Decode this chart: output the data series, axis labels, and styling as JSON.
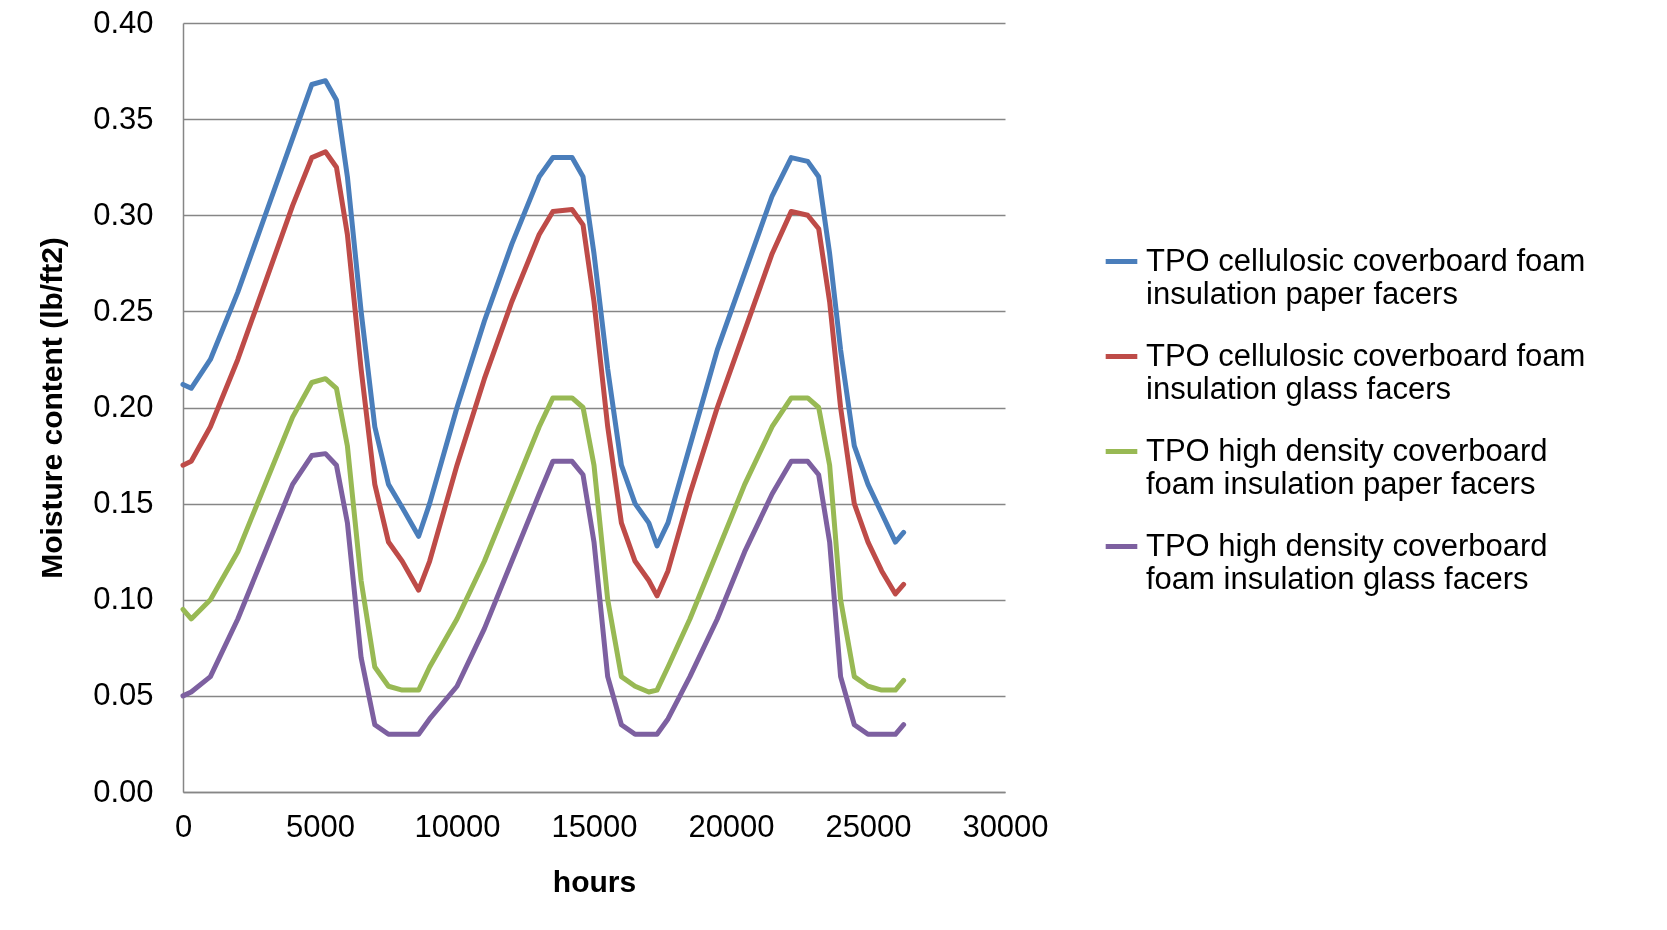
{
  "chart_data": {
    "type": "line",
    "xlabel": "hours",
    "ylabel": "Moisture content (lb/ft2)",
    "x": [
      0,
      300,
      1000,
      2000,
      3000,
      4000,
      4700,
      5200,
      5600,
      6000,
      6500,
      7000,
      7500,
      8000,
      8600,
      9000,
      10000,
      11000,
      12000,
      13000,
      13500,
      14200,
      14600,
      15000,
      15500,
      16000,
      16500,
      17000,
      17300,
      17700,
      18500,
      19500,
      20500,
      21500,
      22200,
      22800,
      23200,
      23600,
      24000,
      24500,
      25000,
      25500,
      26000,
      26300
    ],
    "series": [
      {
        "name": "TPO cellulosic coverboard foam insulation paper facers",
        "color": "#4a7ebb",
        "values": [
          0.212,
          0.21,
          0.225,
          0.26,
          0.3,
          0.34,
          0.368,
          0.37,
          0.36,
          0.32,
          0.25,
          0.19,
          0.16,
          0.148,
          0.133,
          0.15,
          0.2,
          0.245,
          0.285,
          0.32,
          0.33,
          0.33,
          0.32,
          0.28,
          0.22,
          0.17,
          0.15,
          0.14,
          0.128,
          0.14,
          0.18,
          0.23,
          0.27,
          0.31,
          0.33,
          0.328,
          0.32,
          0.28,
          0.23,
          0.18,
          0.16,
          0.145,
          0.13,
          0.135
        ]
      },
      {
        "name": "TPO cellulosic coverboard foam insulation glass facers",
        "color": "#be4b48",
        "values": [
          0.17,
          0.172,
          0.19,
          0.225,
          0.265,
          0.305,
          0.33,
          0.333,
          0.325,
          0.29,
          0.22,
          0.16,
          0.13,
          0.12,
          0.105,
          0.12,
          0.17,
          0.215,
          0.255,
          0.29,
          0.302,
          0.303,
          0.295,
          0.255,
          0.19,
          0.14,
          0.12,
          0.11,
          0.102,
          0.115,
          0.155,
          0.2,
          0.24,
          0.28,
          0.302,
          0.3,
          0.293,
          0.255,
          0.2,
          0.15,
          0.13,
          0.115,
          0.103,
          0.108
        ]
      },
      {
        "name": "TPO high density coverboard foam insulation paper facers",
        "color": "#98b954",
        "values": [
          0.095,
          0.09,
          0.1,
          0.125,
          0.16,
          0.195,
          0.213,
          0.215,
          0.21,
          0.18,
          0.11,
          0.065,
          0.055,
          0.053,
          0.053,
          0.065,
          0.09,
          0.12,
          0.155,
          0.19,
          0.205,
          0.205,
          0.2,
          0.17,
          0.1,
          0.06,
          0.055,
          0.052,
          0.053,
          0.065,
          0.09,
          0.125,
          0.16,
          0.19,
          0.205,
          0.205,
          0.2,
          0.17,
          0.1,
          0.06,
          0.055,
          0.053,
          0.053,
          0.058
        ]
      },
      {
        "name": "TPO high density coverboard foam insulation glass facers",
        "color": "#7d60a0",
        "values": [
          0.05,
          0.052,
          0.06,
          0.09,
          0.125,
          0.16,
          0.175,
          0.176,
          0.17,
          0.14,
          0.07,
          0.035,
          0.03,
          0.03,
          0.03,
          0.038,
          0.055,
          0.085,
          0.12,
          0.155,
          0.172,
          0.172,
          0.165,
          0.13,
          0.06,
          0.035,
          0.03,
          0.03,
          0.03,
          0.038,
          0.06,
          0.09,
          0.125,
          0.155,
          0.172,
          0.172,
          0.165,
          0.13,
          0.06,
          0.035,
          0.03,
          0.03,
          0.03,
          0.035
        ]
      }
    ],
    "xlim": [
      0,
      30000
    ],
    "xticks": [
      0,
      5000,
      10000,
      15000,
      20000,
      25000,
      30000
    ],
    "ylim": [
      0,
      0.4
    ],
    "yticks": [
      {
        "value": 0,
        "label": "0.00"
      },
      {
        "value": 0.05,
        "label": "0.05"
      },
      {
        "value": 0.1,
        "label": "0.10"
      },
      {
        "value": 0.15,
        "label": "0.15"
      },
      {
        "value": 0.2,
        "label": "0.20"
      },
      {
        "value": 0.25,
        "label": "0.25"
      },
      {
        "value": 0.3,
        "label": "0.30"
      },
      {
        "value": 0.35,
        "label": "0.35"
      },
      {
        "value": 0.4,
        "label": "0.40"
      }
    ],
    "grid": "y",
    "legend": "right",
    "marker": "none",
    "line_style": "solid"
  }
}
